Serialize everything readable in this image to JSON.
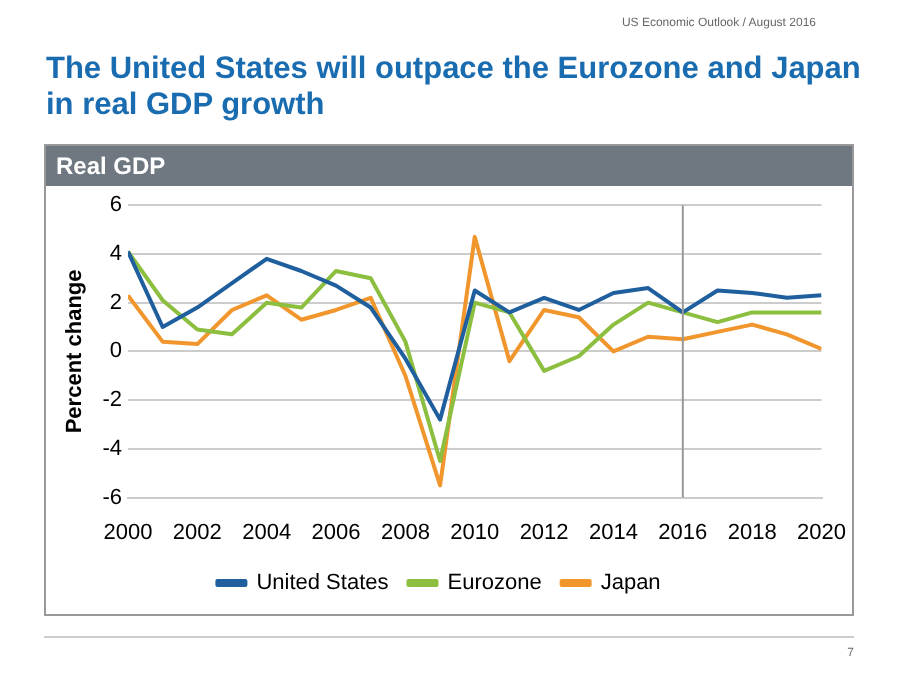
{
  "chart_data": {
    "type": "line",
    "title": "The United States will outpace the Eurozone and Japan in real GDP growth",
    "subtitle": "Real GDP",
    "ylabel": "Percent change",
    "annotations": [
      "US Economic Outlook / August 2016",
      "7"
    ],
    "x": [
      2000,
      2001,
      2002,
      2003,
      2004,
      2005,
      2006,
      2007,
      2008,
      2009,
      2010,
      2011,
      2012,
      2013,
      2014,
      2015,
      2016,
      2017,
      2018,
      2019,
      2020
    ],
    "series": [
      {
        "name": "United States",
        "color": "#1f5f9e",
        "values": [
          4.1,
          1.0,
          1.8,
          2.8,
          3.8,
          3.3,
          2.7,
          1.8,
          -0.3,
          -2.8,
          2.5,
          1.6,
          2.2,
          1.7,
          2.4,
          2.6,
          1.6,
          2.5,
          2.4,
          2.2,
          2.3
        ]
      },
      {
        "name": "Eurozone",
        "color": "#8cbf3f",
        "values": [
          4.1,
          2.1,
          0.9,
          0.7,
          2.0,
          1.8,
          3.3,
          3.0,
          0.4,
          -4.5,
          2.0,
          1.6,
          -0.8,
          -0.2,
          1.1,
          2.0,
          1.6,
          1.2,
          1.6,
          1.6,
          1.6
        ]
      },
      {
        "name": "Japan",
        "color": "#f0962d",
        "values": [
          2.3,
          0.4,
          0.3,
          1.7,
          2.3,
          1.3,
          1.7,
          2.2,
          -1.0,
          -5.5,
          4.7,
          -0.4,
          1.7,
          1.4,
          0.0,
          0.6,
          0.5,
          0.8,
          1.1,
          0.7,
          0.1
        ]
      }
    ],
    "xlim": [
      2000,
      2020
    ],
    "xticks": [
      2000,
      2002,
      2004,
      2006,
      2008,
      2010,
      2012,
      2014,
      2016,
      2018,
      2020
    ],
    "ylim": [
      -6,
      6
    ],
    "yticks": [
      -6,
      -4,
      -2,
      0,
      2,
      4,
      6
    ],
    "ref_lines": [
      {
        "axis": "x",
        "value": 2016,
        "color": "#999999"
      }
    ],
    "grid": "y",
    "legend": "bottom",
    "marker": "none",
    "line_style": "solid"
  }
}
